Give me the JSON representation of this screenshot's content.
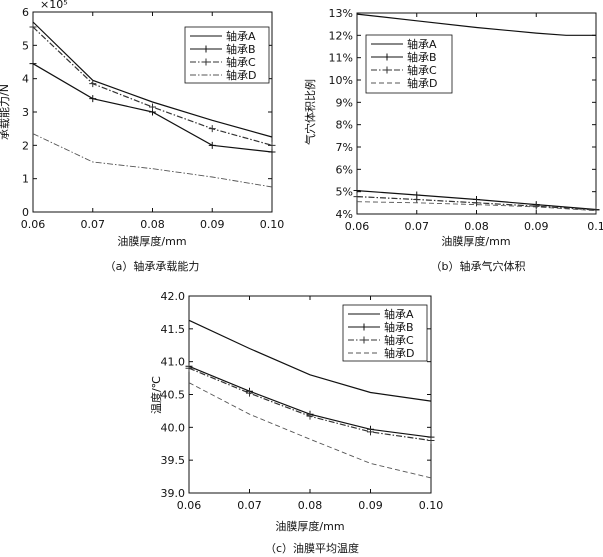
{
  "chart_data": [
    {
      "type": "line",
      "caption": "（a）轴承承载能力",
      "xlabel": "油膜厚度/mm",
      "ylabel": "承载能力/N",
      "y_multiplier": "×10⁵",
      "x_ticks": [
        "0.06",
        "0.07",
        "0.08",
        "0.09",
        "0.10"
      ],
      "y_ticks": [
        "0",
        "1",
        "2",
        "3",
        "4",
        "5",
        "6"
      ],
      "xlim": [
        0.06,
        0.1
      ],
      "ylim": [
        0,
        6
      ],
      "legend_position": "top-right",
      "series": [
        {
          "name": "轴承A",
          "style": "solid",
          "marker": "none",
          "x": [
            0.06,
            0.07,
            0.08,
            0.09,
            0.1
          ],
          "y": [
            5.7,
            3.95,
            3.3,
            2.75,
            2.25
          ]
        },
        {
          "name": "轴承B",
          "style": "solid",
          "marker": "plus",
          "x": [
            0.06,
            0.07,
            0.08,
            0.09,
            0.1
          ],
          "y": [
            4.45,
            3.4,
            3.0,
            2.0,
            1.8
          ]
        },
        {
          "name": "轴承C",
          "style": "dashdot",
          "marker": "plus",
          "x": [
            0.06,
            0.07,
            0.08,
            0.09,
            0.1
          ],
          "y": [
            5.55,
            3.85,
            3.15,
            2.5,
            2.0
          ]
        },
        {
          "name": "轴承D",
          "style": "dashdot",
          "marker": "none",
          "x": [
            0.06,
            0.07,
            0.08,
            0.09,
            0.1
          ],
          "y": [
            2.35,
            1.5,
            1.3,
            1.05,
            0.75
          ]
        }
      ]
    },
    {
      "type": "line",
      "caption": "（b）轴承气穴体积",
      "xlabel": "油膜厚度/mm",
      "ylabel": "气穴体积比例",
      "x_ticks": [
        "0.06",
        "0.07",
        "0.08",
        "0.09",
        "0.1"
      ],
      "y_ticks": [
        "4%",
        "5%",
        "6%",
        "7%",
        "8%",
        "9%",
        "10%",
        "11%",
        "12%",
        "13%"
      ],
      "xlim": [
        0.06,
        0.1
      ],
      "ylim": [
        4,
        13
      ],
      "legend_position": "top-left",
      "series": [
        {
          "name": "轴承A",
          "style": "solid",
          "marker": "none",
          "x": [
            0.06,
            0.07,
            0.08,
            0.09,
            0.095,
            0.1
          ],
          "y": [
            12.95,
            12.65,
            12.35,
            12.1,
            12.0,
            12.0
          ]
        },
        {
          "name": "轴承B",
          "style": "solid",
          "marker": "plus",
          "x": [
            0.06,
            0.07,
            0.08,
            0.09,
            0.1
          ],
          "y": [
            5.05,
            4.85,
            4.65,
            4.42,
            4.2
          ]
        },
        {
          "name": "轴承C",
          "style": "dashdot",
          "marker": "plus",
          "x": [
            0.06,
            0.07,
            0.08,
            0.09,
            0.1
          ],
          "y": [
            4.78,
            4.65,
            4.5,
            4.35,
            4.18
          ]
        },
        {
          "name": "轴承D",
          "style": "dashed",
          "marker": "none",
          "x": [
            0.06,
            0.07,
            0.08,
            0.09,
            0.1
          ],
          "y": [
            4.55,
            4.5,
            4.42,
            4.32,
            4.15
          ]
        }
      ]
    },
    {
      "type": "line",
      "caption": "（c）油膜平均温度",
      "xlabel": "油膜厚度/mm",
      "ylabel": "温度/℃",
      "x_ticks": [
        "0.06",
        "0.07",
        "0.08",
        "0.09",
        "0.10"
      ],
      "y_ticks": [
        "39.0",
        "39.5",
        "40.0",
        "40.5",
        "41.0",
        "41.5",
        "42.0"
      ],
      "xlim": [
        0.06,
        0.1
      ],
      "ylim": [
        39.0,
        42.0
      ],
      "legend_position": "top-right",
      "series": [
        {
          "name": "轴承A",
          "style": "solid",
          "marker": "none",
          "x": [
            0.06,
            0.07,
            0.08,
            0.09,
            0.1
          ],
          "y": [
            41.63,
            41.2,
            40.8,
            40.53,
            40.4
          ]
        },
        {
          "name": "轴承B",
          "style": "solid",
          "marker": "plus",
          "x": [
            0.06,
            0.07,
            0.08,
            0.09,
            0.1
          ],
          "y": [
            40.93,
            40.55,
            40.2,
            39.97,
            39.85
          ]
        },
        {
          "name": "轴承C",
          "style": "dashdot",
          "marker": "plus",
          "x": [
            0.06,
            0.07,
            0.08,
            0.09,
            0.1
          ],
          "y": [
            40.9,
            40.52,
            40.17,
            39.93,
            39.8
          ]
        },
        {
          "name": "轴承D",
          "style": "dashed",
          "marker": "none",
          "x": [
            0.06,
            0.07,
            0.08,
            0.09,
            0.1
          ],
          "y": [
            40.68,
            40.2,
            39.82,
            39.45,
            39.23
          ]
        }
      ]
    }
  ]
}
